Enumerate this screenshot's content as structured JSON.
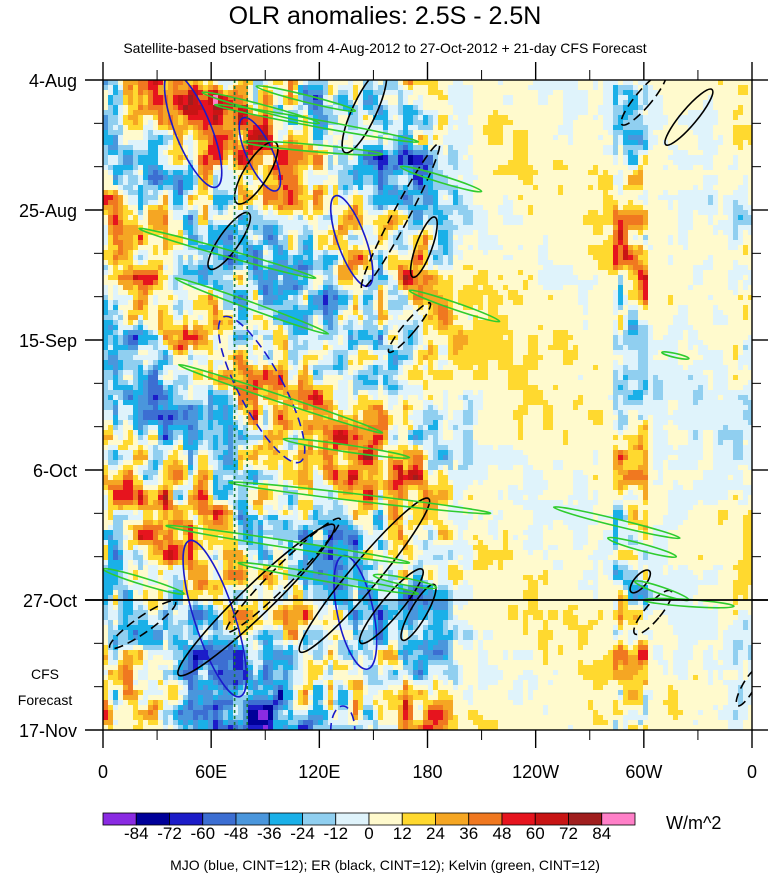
{
  "chart_data": {
    "type": "heatmap",
    "title": "OLR anomalies: 2.5S - 2.5N",
    "subtitle": "Satellite-based bservations from 4-Aug-2012 to 27-Oct-2012 + 21-day CFS Forecast",
    "x_axis": {
      "range_deg_east": [
        0,
        360
      ],
      "ticks_deg_east": [
        0,
        60,
        120,
        180,
        240,
        300,
        360
      ],
      "tick_labels": [
        "0",
        "60E",
        "120E",
        "180",
        "120W",
        "60W",
        "0"
      ]
    },
    "y_axis": {
      "range": [
        "2012-08-04",
        "2012-11-17"
      ],
      "ticks": [
        "2012-08-04",
        "2012-08-25",
        "2012-09-15",
        "2012-10-06",
        "2012-10-27",
        "2012-11-17"
      ],
      "tick_labels": [
        "4-Aug",
        "25-Aug",
        "15-Sep",
        "6-Oct",
        "27-Oct",
        "17-Nov"
      ],
      "direction": "time increasing downward"
    },
    "forecast_start": "2012-10-27",
    "forecast_label": [
      "CFS",
      "Forecast"
    ],
    "colorbar": {
      "levels": [
        -84,
        -72,
        -60,
        -48,
        -36,
        -24,
        -12,
        0,
        12,
        24,
        36,
        48,
        60,
        72,
        84
      ],
      "level_labels": [
        "-84",
        "-72",
        "-60",
        "-48",
        "-36",
        "-24",
        "-12",
        "0",
        "12",
        "24",
        "36",
        "48",
        "60",
        "72",
        "84"
      ],
      "colors": [
        "#8a2be2",
        "#000099",
        "#1c1cc8",
        "#3c6ed2",
        "#4a96dc",
        "#1ab0e8",
        "#90cff0",
        "#dff3fb",
        "#fffacd",
        "#ffd92f",
        "#f5a623",
        "#f07820",
        "#e6141e",
        "#c81414",
        "#a01e1e",
        "#ff80c8"
      ],
      "units": "W/m^2"
    },
    "contours": {
      "MJO": "#1a1acc",
      "ER": "#000000",
      "Kelvin": "#2ecc2e",
      "caption": "MJO (blue, CINT=12); ER (black, CINT=12); Kelvin (green, CINT=12)"
    },
    "reference_lines_deg_east": [
      73,
      80
    ]
  }
}
